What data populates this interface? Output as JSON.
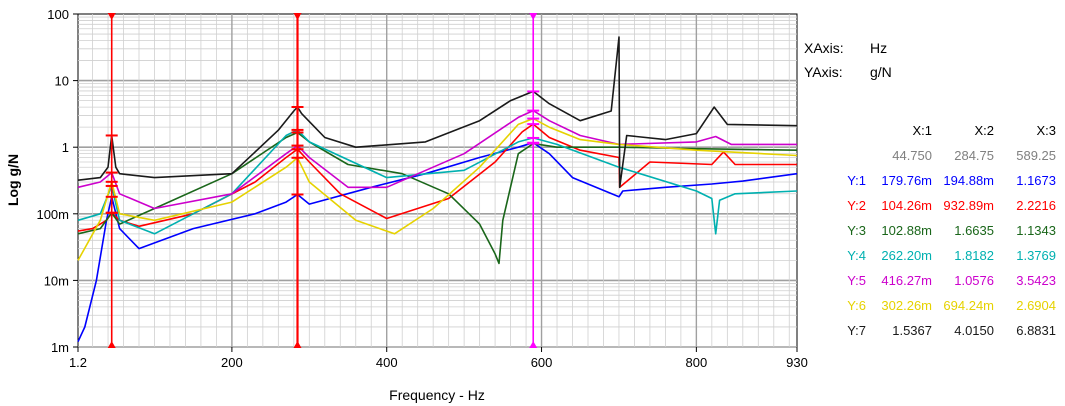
{
  "chart_data": {
    "type": "line",
    "xlabel": "Frequency - Hz",
    "ylabel": "Log g/N",
    "xlim": [
      1.2,
      930
    ],
    "ylim_log10": [
      -3,
      2
    ],
    "y_scale": "log",
    "x_ticks": [
      "1.2",
      "200",
      "400",
      "600",
      "800",
      "930"
    ],
    "x_tick_values": [
      1.2,
      200,
      400,
      600,
      800,
      930
    ],
    "y_ticks": [
      "1m",
      "10m",
      "100m",
      "1",
      "10",
      "100"
    ],
    "y_tick_values": [
      0.001,
      0.01,
      0.1,
      1,
      10,
      100
    ],
    "grid": true,
    "cursors": [
      {
        "label": "X:1",
        "x": 44.75,
        "color": "#ff0000"
      },
      {
        "label": "X:2",
        "x": 284.75,
        "color": "#ff0000"
      },
      {
        "label": "X:3",
        "x": 589.25,
        "color": "#ff00ff"
      }
    ],
    "series": [
      {
        "color": "#0000ff",
        "x": [
          1.2,
          10,
          25,
          38,
          44.75,
          55,
          80,
          150,
          230,
          270,
          284.75,
          300,
          380,
          450,
          520,
          570,
          589.25,
          610,
          640,
          700,
          705,
          760,
          820,
          860,
          930
        ],
        "y": [
          0.0012,
          0.002,
          0.01,
          0.08,
          0.18,
          0.06,
          0.03,
          0.06,
          0.1,
          0.15,
          0.195,
          0.14,
          0.25,
          0.4,
          0.7,
          1.0,
          1.1673,
          0.8,
          0.35,
          0.18,
          0.22,
          0.25,
          0.28,
          0.31,
          0.4
        ]
      },
      {
        "color": "#ff0000",
        "x": [
          1.2,
          20,
          38,
          44.75,
          55,
          80,
          150,
          230,
          270,
          284.75,
          300,
          340,
          400,
          480,
          540,
          575,
          589.25,
          610,
          650,
          700,
          701,
          740,
          820,
          835,
          850,
          930
        ],
        "y": [
          0.055,
          0.06,
          0.08,
          0.104,
          0.08,
          0.065,
          0.1,
          0.3,
          0.7,
          0.933,
          0.6,
          0.2,
          0.085,
          0.17,
          0.6,
          1.7,
          2.2216,
          1.4,
          0.9,
          0.7,
          0.25,
          0.6,
          0.55,
          0.85,
          0.55,
          0.55
        ]
      },
      {
        "color": "#1a661a",
        "x": [
          1.2,
          30,
          44.75,
          55,
          100,
          200,
          270,
          284.75,
          300,
          350,
          420,
          480,
          520,
          540,
          545,
          550,
          570,
          589.25,
          620,
          700,
          800,
          930
        ],
        "y": [
          0.05,
          0.06,
          0.103,
          0.07,
          0.12,
          0.4,
          1.4,
          1.6635,
          1.2,
          0.55,
          0.4,
          0.2,
          0.07,
          0.025,
          0.018,
          0.08,
          0.8,
          1.1343,
          1.0,
          1.0,
          0.95,
          0.9
        ]
      },
      {
        "color": "#00b0b0",
        "x": [
          1.2,
          30,
          44.75,
          55,
          100,
          200,
          270,
          284.75,
          300,
          400,
          500,
          570,
          589.25,
          620,
          700,
          800,
          820,
          825,
          830,
          850,
          930
        ],
        "y": [
          0.08,
          0.1,
          0.262,
          0.08,
          0.05,
          0.2,
          1.5,
          1.8182,
          1.2,
          0.35,
          0.45,
          1.2,
          1.3769,
          1.1,
          0.5,
          0.22,
          0.17,
          0.05,
          0.16,
          0.2,
          0.22
        ]
      },
      {
        "color": "#cc00cc",
        "x": [
          1.2,
          30,
          44.75,
          55,
          100,
          200,
          270,
          284.75,
          300,
          350,
          400,
          500,
          570,
          589.25,
          610,
          650,
          700,
          800,
          825,
          845,
          930
        ],
        "y": [
          0.25,
          0.3,
          0.416,
          0.2,
          0.12,
          0.2,
          0.8,
          1.0576,
          0.7,
          0.25,
          0.25,
          0.8,
          2.8,
          3.5423,
          2.5,
          1.5,
          1.1,
          1.2,
          1.45,
          1.1,
          1.1
        ]
      },
      {
        "color": "#e6d200",
        "x": [
          1.2,
          30,
          44.75,
          55,
          100,
          200,
          270,
          284.75,
          300,
          360,
          410,
          460,
          520,
          570,
          589.25,
          610,
          650,
          700,
          800,
          930
        ],
        "y": [
          0.02,
          0.08,
          0.302,
          0.1,
          0.08,
          0.15,
          0.5,
          0.694,
          0.3,
          0.08,
          0.05,
          0.12,
          0.5,
          2.2,
          2.6904,
          2.0,
          1.3,
          1.1,
          0.9,
          0.75
        ]
      },
      {
        "color": "#1a1a1a",
        "x": [
          1.2,
          30,
          40,
          44.75,
          50,
          55,
          100,
          200,
          260,
          280,
          284.75,
          290,
          320,
          360,
          450,
          520,
          560,
          589.25,
          610,
          650,
          690,
          700,
          701,
          710,
          760,
          800,
          823,
          840,
          930
        ],
        "y": [
          0.32,
          0.35,
          0.5,
          1.5,
          0.5,
          0.4,
          0.35,
          0.4,
          1.8,
          3.5,
          4.015,
          3.2,
          1.4,
          1.0,
          1.2,
          2.5,
          5.0,
          6.8831,
          4.5,
          2.5,
          3.5,
          45,
          0.25,
          1.5,
          1.3,
          1.6,
          4.0,
          2.2,
          2.1
        ]
      }
    ]
  },
  "axis_info": {
    "xaxis_label": "XAxis:",
    "xaxis_unit": "Hz",
    "yaxis_label": "YAxis:",
    "yaxis_unit": "g/N"
  },
  "cursor_table": {
    "headers": [
      "X:1",
      "X:2",
      "X:3"
    ],
    "x_values": [
      "44.750",
      "284.75",
      "589.25"
    ],
    "x_values_color": "#808080",
    "rows": [
      {
        "label": "Y:1",
        "values": [
          "179.76m",
          "194.88m",
          "1.1673"
        ],
        "color": "#0000ff"
      },
      {
        "label": "Y:2",
        "values": [
          "104.26m",
          "932.89m",
          "2.2216"
        ],
        "color": "#ff0000"
      },
      {
        "label": "Y:3",
        "values": [
          "102.88m",
          "1.6635",
          "1.1343"
        ],
        "color": "#1a661a"
      },
      {
        "label": "Y:4",
        "values": [
          "262.20m",
          "1.8182",
          "1.3769"
        ],
        "color": "#00b0b0"
      },
      {
        "label": "Y:5",
        "values": [
          "416.27m",
          "1.0576",
          "3.5423"
        ],
        "color": "#cc00cc"
      },
      {
        "label": "Y:6",
        "values": [
          "302.26m",
          "694.24m",
          "2.6904"
        ],
        "color": "#e6d200"
      },
      {
        "label": "Y:7",
        "values": [
          "1.5367",
          "4.0150",
          "6.8831"
        ],
        "color": "#1a1a1a"
      }
    ]
  }
}
